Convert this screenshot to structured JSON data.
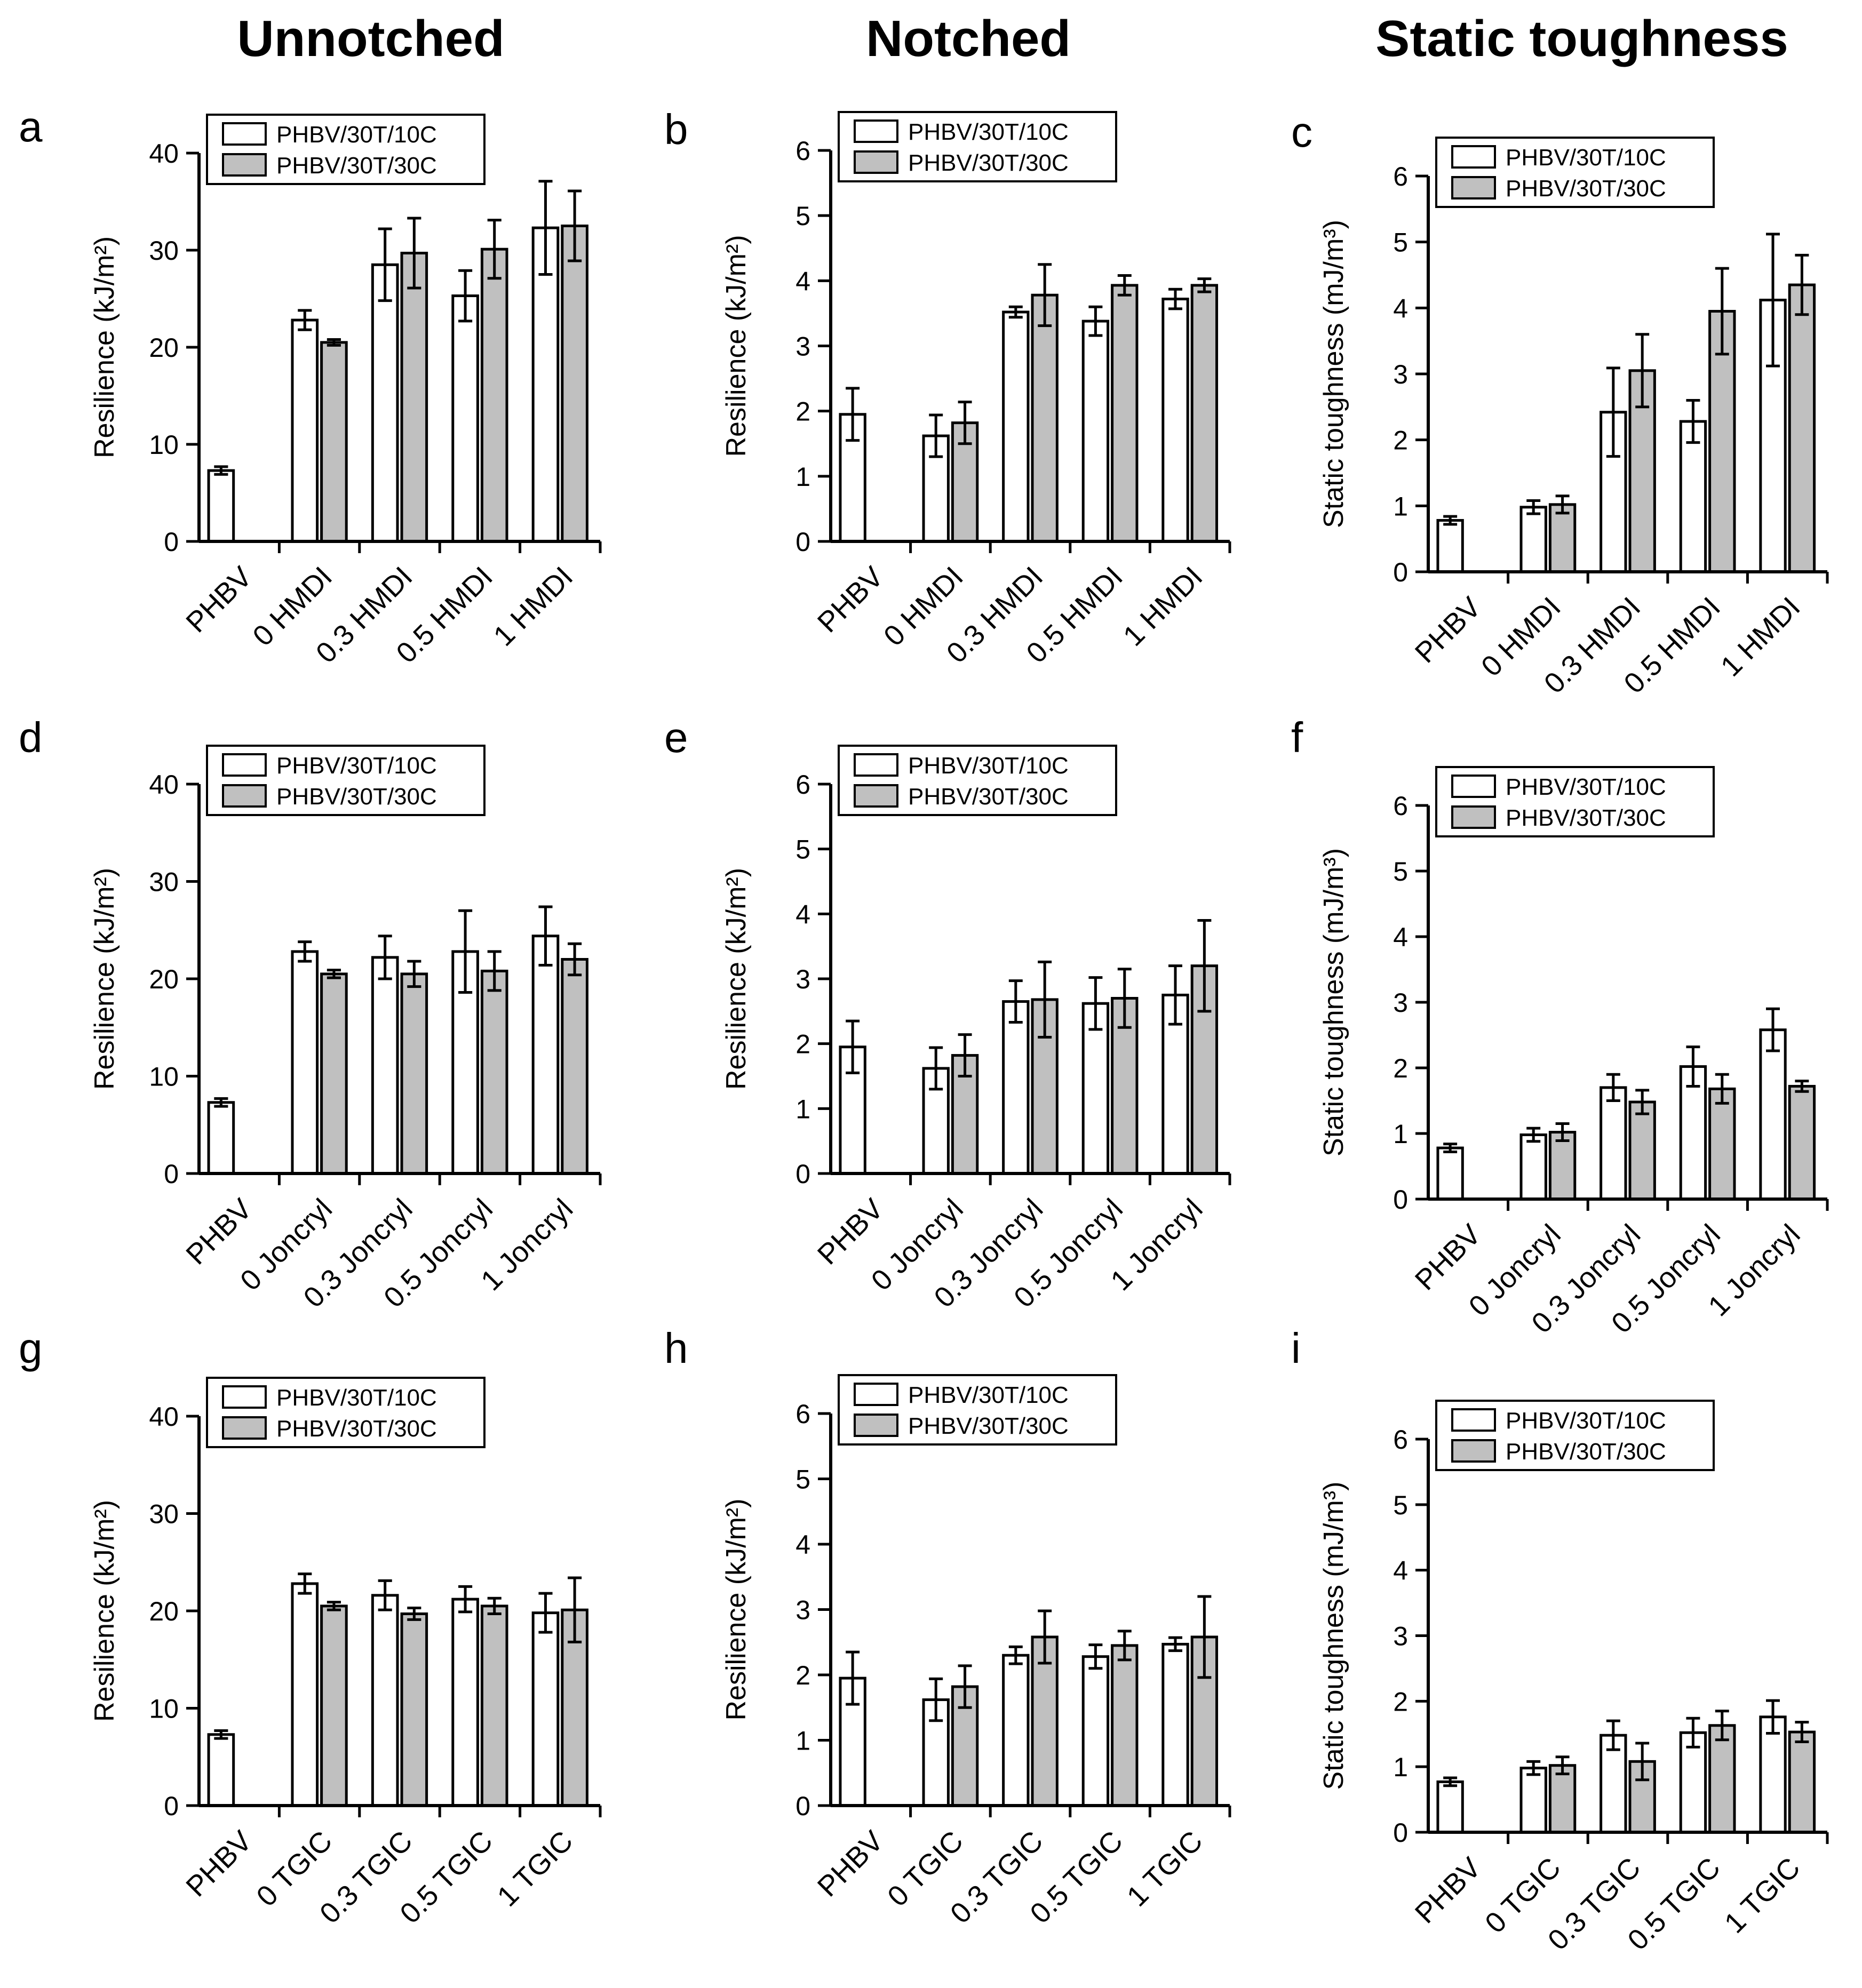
{
  "column_titles": [
    "Unnotched",
    "Notched",
    "Static toughness"
  ],
  "legend": [
    {
      "label": "PHBV/30T/10C",
      "color": "#ffffff"
    },
    {
      "label": "PHBV/30T/30C",
      "color": "#c0c0c0"
    }
  ],
  "chart_data": [
    {
      "type": "bar",
      "panel": "a",
      "ylabel": "Resilience (kJ/m²)",
      "ylim": [
        0,
        40
      ],
      "yticks": [
        0,
        10,
        20,
        30,
        40
      ],
      "categories": [
        "PHBV",
        "0 HMDI",
        "0.3 HMDI",
        "0.5 HMDI",
        "1 HMDI"
      ],
      "series": [
        {
          "name": "PHBV/30T/10C",
          "values": [
            7.3,
            22.8,
            28.5,
            25.3,
            32.3
          ],
          "errors": [
            0.4,
            1.0,
            3.7,
            2.6,
            4.8
          ]
        },
        {
          "name": "PHBV/30T/30C",
          "values": [
            null,
            20.5,
            29.7,
            30.1,
            32.5
          ],
          "errors": [
            null,
            0.3,
            3.6,
            3.0,
            3.6
          ]
        }
      ]
    },
    {
      "type": "bar",
      "panel": "b",
      "ylabel": "Resilience (kJ/m²)",
      "ylim": [
        0,
        6
      ],
      "yticks": [
        0,
        1,
        2,
        3,
        4,
        5,
        6
      ],
      "categories": [
        "PHBV",
        "0 HMDI",
        "0.3 HMDI",
        "0.5 HMDI",
        "1 HMDI"
      ],
      "series": [
        {
          "name": "PHBV/30T/10C",
          "values": [
            1.95,
            1.62,
            3.52,
            3.38,
            3.72
          ],
          "errors": [
            0.4,
            0.32,
            0.08,
            0.22,
            0.15
          ]
        },
        {
          "name": "PHBV/30T/30C",
          "values": [
            null,
            1.82,
            3.78,
            3.93,
            3.93
          ],
          "errors": [
            null,
            0.32,
            0.47,
            0.15,
            0.1
          ]
        }
      ]
    },
    {
      "type": "bar",
      "panel": "c",
      "ylabel": "Static toughness (mJ/m³)",
      "ylim": [
        0,
        6
      ],
      "yticks": [
        0,
        1,
        2,
        3,
        4,
        5,
        6
      ],
      "categories": [
        "PHBV",
        "0 HMDI",
        "0.3 HMDI",
        "0.5 HMDI",
        "1 HMDI"
      ],
      "series": [
        {
          "name": "PHBV/30T/10C",
          "values": [
            0.78,
            0.98,
            2.42,
            2.28,
            4.12
          ],
          "errors": [
            0.06,
            0.1,
            0.67,
            0.32,
            1.0
          ]
        },
        {
          "name": "PHBV/30T/30C",
          "values": [
            null,
            1.02,
            3.05,
            3.95,
            4.35
          ],
          "errors": [
            null,
            0.13,
            0.55,
            0.65,
            0.45
          ]
        }
      ]
    },
    {
      "type": "bar",
      "panel": "d",
      "ylabel": "Resilience (kJ/m²)",
      "ylim": [
        0,
        40
      ],
      "yticks": [
        0,
        10,
        20,
        30,
        40
      ],
      "categories": [
        "PHBV",
        "0 Joncryl",
        "0.3 Joncryl",
        "0.5 Joncryl",
        "1 Joncryl"
      ],
      "series": [
        {
          "name": "PHBV/30T/10C",
          "values": [
            7.3,
            22.8,
            22.2,
            22.8,
            24.4
          ],
          "errors": [
            0.4,
            1.0,
            2.2,
            4.2,
            3.0
          ]
        },
        {
          "name": "PHBV/30T/30C",
          "values": [
            null,
            20.5,
            20.5,
            20.8,
            22.0
          ],
          "errors": [
            null,
            0.4,
            1.3,
            2.0,
            1.6
          ]
        }
      ]
    },
    {
      "type": "bar",
      "panel": "e",
      "ylabel": "Resilience (kJ/m²)",
      "ylim": [
        0,
        6
      ],
      "yticks": [
        0,
        1,
        2,
        3,
        4,
        5,
        6
      ],
      "categories": [
        "PHBV",
        "0 Joncryl",
        "0.3 Joncryl",
        "0.5 Joncryl",
        "1 Joncryl"
      ],
      "series": [
        {
          "name": "PHBV/30T/10C",
          "values": [
            1.95,
            1.62,
            2.65,
            2.62,
            2.75
          ],
          "errors": [
            0.4,
            0.32,
            0.32,
            0.4,
            0.45
          ]
        },
        {
          "name": "PHBV/30T/30C",
          "values": [
            null,
            1.82,
            2.68,
            2.7,
            3.2
          ],
          "errors": [
            null,
            0.32,
            0.58,
            0.45,
            0.7
          ]
        }
      ]
    },
    {
      "type": "bar",
      "panel": "f",
      "ylabel": "Static toughness (mJ/m³)",
      "ylim": [
        0,
        6
      ],
      "yticks": [
        0,
        1,
        2,
        3,
        4,
        5,
        6
      ],
      "categories": [
        "PHBV",
        "0 Joncryl",
        "0.3 Joncryl",
        "0.5 Joncryl",
        "1 Joncryl"
      ],
      "series": [
        {
          "name": "PHBV/30T/10C",
          "values": [
            0.78,
            0.98,
            1.7,
            2.02,
            2.58
          ],
          "errors": [
            0.06,
            0.1,
            0.2,
            0.3,
            0.32
          ]
        },
        {
          "name": "PHBV/30T/30C",
          "values": [
            null,
            1.02,
            1.48,
            1.68,
            1.72
          ],
          "errors": [
            null,
            0.13,
            0.18,
            0.22,
            0.08
          ]
        }
      ]
    },
    {
      "type": "bar",
      "panel": "g",
      "ylabel": "Resilience (kJ/m²)",
      "ylim": [
        0,
        40
      ],
      "yticks": [
        0,
        10,
        20,
        30,
        40
      ],
      "categories": [
        "PHBV",
        "0 TGIC",
        "0.3 TGIC",
        "0.5 TGIC",
        "1 TGIC"
      ],
      "series": [
        {
          "name": "PHBV/30T/10C",
          "values": [
            7.3,
            22.8,
            21.6,
            21.2,
            19.8
          ],
          "errors": [
            0.4,
            1.0,
            1.5,
            1.3,
            2.0
          ]
        },
        {
          "name": "PHBV/30T/30C",
          "values": [
            null,
            20.5,
            19.7,
            20.5,
            20.1
          ],
          "errors": [
            null,
            0.4,
            0.6,
            0.8,
            3.3
          ]
        }
      ]
    },
    {
      "type": "bar",
      "panel": "h",
      "ylabel": "Resilience (kJ/m²)",
      "ylim": [
        0,
        6
      ],
      "yticks": [
        0,
        1,
        2,
        3,
        4,
        5,
        6
      ],
      "categories": [
        "PHBV",
        "0 TGIC",
        "0.3 TGIC",
        "0.5 TGIC",
        "1 TGIC"
      ],
      "series": [
        {
          "name": "PHBV/30T/10C",
          "values": [
            1.95,
            1.62,
            2.3,
            2.28,
            2.47
          ],
          "errors": [
            0.4,
            0.32,
            0.13,
            0.18,
            0.1
          ]
        },
        {
          "name": "PHBV/30T/30C",
          "values": [
            null,
            1.82,
            2.58,
            2.45,
            2.58
          ],
          "errors": [
            null,
            0.32,
            0.4,
            0.22,
            0.62
          ]
        }
      ]
    },
    {
      "type": "bar",
      "panel": "i",
      "ylabel": "Static toughness (mJ/m³)",
      "ylim": [
        0,
        6
      ],
      "yticks": [
        0,
        1,
        2,
        3,
        4,
        5,
        6
      ],
      "categories": [
        "PHBV",
        "0 TGIC",
        "0.3 TGIC",
        "0.5 TGIC",
        "1 TGIC"
      ],
      "series": [
        {
          "name": "PHBV/30T/10C",
          "values": [
            0.77,
            0.98,
            1.48,
            1.52,
            1.76
          ],
          "errors": [
            0.06,
            0.1,
            0.22,
            0.22,
            0.25
          ]
        },
        {
          "name": "PHBV/30T/30C",
          "values": [
            null,
            1.02,
            1.08,
            1.63,
            1.53
          ],
          "errors": [
            null,
            0.13,
            0.28,
            0.22,
            0.15
          ]
        }
      ]
    }
  ]
}
